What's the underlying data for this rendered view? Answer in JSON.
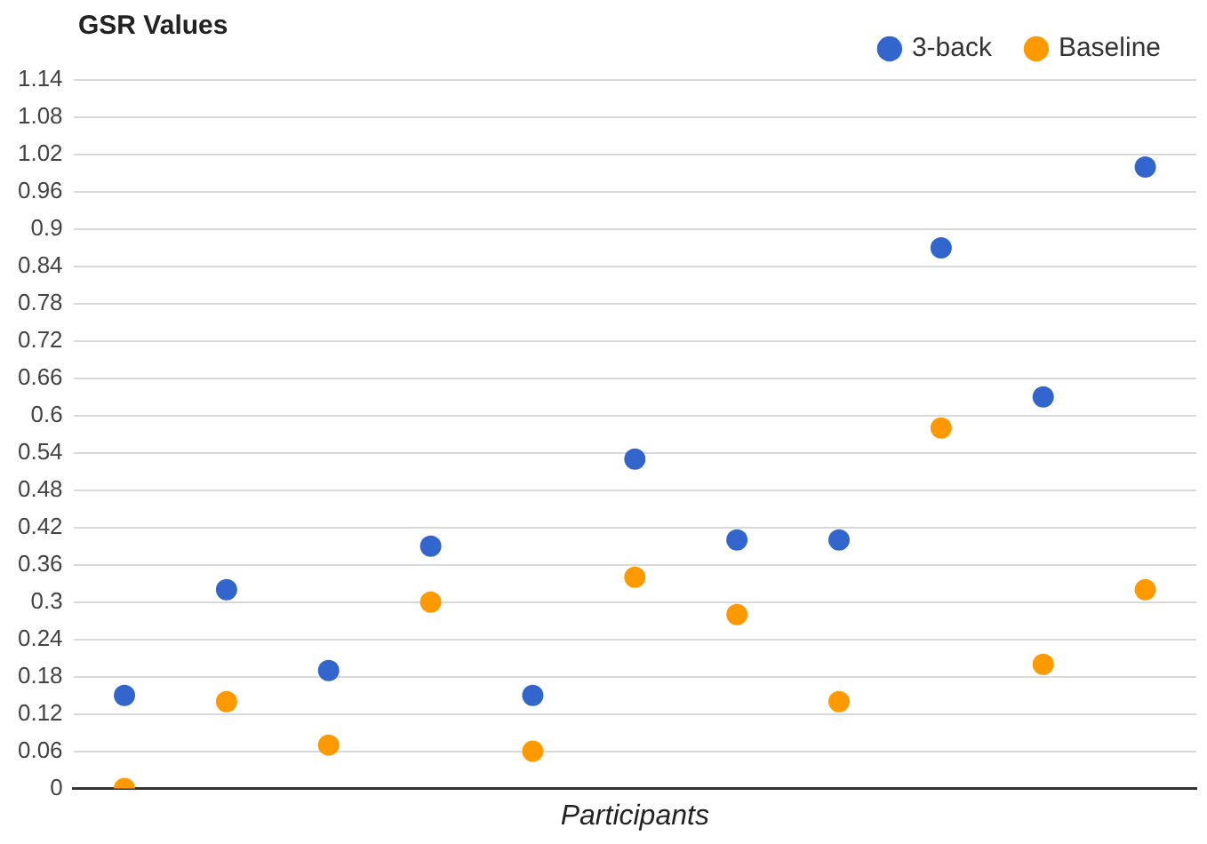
{
  "chart_data": {
    "type": "scatter",
    "title": "GSR Values",
    "xlabel": "Participants",
    "categories": [
      null,
      null,
      null,
      null,
      null,
      null,
      null,
      null,
      null,
      null,
      null
    ],
    "series": [
      {
        "name": "3-back",
        "color": "#3366cc",
        "values": [
          0.15,
          0.32,
          0.19,
          0.39,
          0.15,
          0.53,
          0.4,
          0.4,
          0.87,
          0.63,
          1.0
        ]
      },
      {
        "name": "Baseline",
        "color": "#ff9900",
        "values": [
          0,
          0.14,
          0.07,
          0.3,
          0.06,
          0.34,
          0.28,
          0.14,
          0.58,
          0.2,
          0.32
        ]
      }
    ],
    "ylim": [
      0,
      1.14
    ],
    "yticks": [
      0,
      0.06,
      0.12,
      0.18,
      0.24,
      0.3,
      0.36,
      0.42,
      0.48,
      0.54,
      0.6,
      0.66,
      0.72,
      0.78,
      0.84,
      0.9,
      0.96,
      1.02,
      1.08,
      1.14
    ],
    "grid": "y",
    "legend": "top right",
    "marker": "circle"
  }
}
